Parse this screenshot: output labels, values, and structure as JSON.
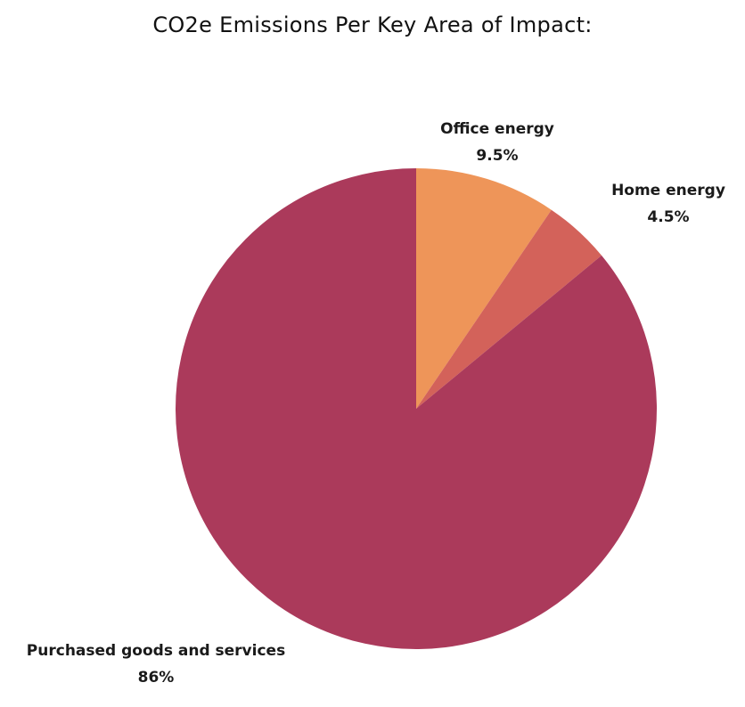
{
  "chart_data": {
    "type": "pie",
    "title": "CO2e Emissions Per Key Area of Impact:",
    "slices": [
      {
        "name": "Office energy",
        "value": 9.5,
        "label": "9.5%",
        "color": "#EE9559"
      },
      {
        "name": "Home energy",
        "value": 4.5,
        "label": "4.5%",
        "color": "#D3625A"
      },
      {
        "name": "Purchased goods and services",
        "value": 86,
        "label": "86%",
        "color": "#AB3A5B"
      }
    ],
    "legend": "none",
    "labels": "outside"
  }
}
